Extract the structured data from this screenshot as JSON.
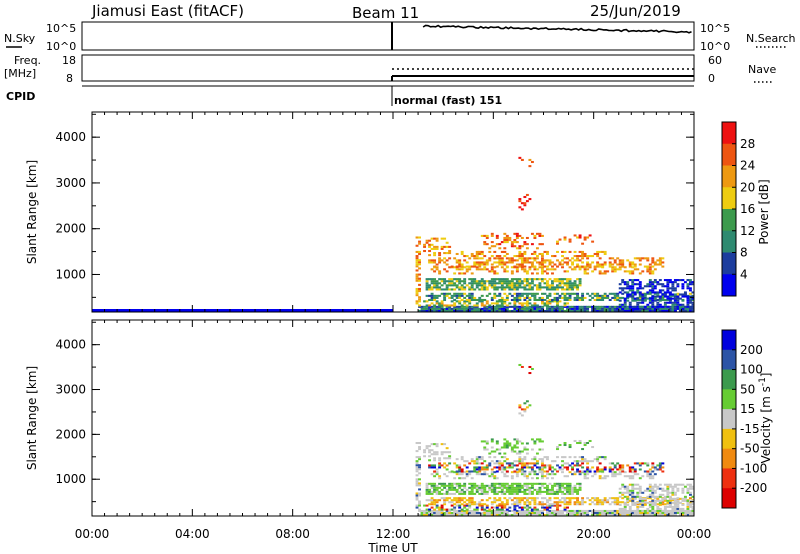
{
  "header": {
    "station": "Jiamusi East (fitACF)",
    "beam": "Beam 11",
    "date": "25/Jun/2019"
  },
  "strip_labels": {
    "nsky": "N.Sky",
    "nsky_ticks": [
      "10^5",
      "10^0"
    ],
    "nsearch": "N.Search",
    "freq_line1": "Freq.",
    "freq_line2": "[MHz]",
    "freq_ticks": [
      "18",
      "8"
    ],
    "nave": "Nave",
    "nave_ticks": [
      "60",
      "0"
    ],
    "cpid": "CPID",
    "mode_label": "normal (fast) 151"
  },
  "chart_data": [
    {
      "type": "heatmap",
      "name": "power-panel",
      "ylabel": "Slant Range [km]",
      "xlabel": "",
      "y_ticks": [
        1000,
        2000,
        3000,
        4000
      ],
      "ylim": [
        180,
        4550
      ],
      "x_tick_labels": [
        "00:00",
        "04:00",
        "08:00",
        "12:00",
        "16:00",
        "20:00",
        "00:00"
      ],
      "xlim_hours": [
        0,
        24
      ],
      "colorbar": {
        "label": "Power [dB]",
        "ticks": [
          "28",
          "24",
          "20",
          "16",
          "12",
          "8",
          "4"
        ],
        "colors": [
          "#ee1111",
          "#ee5511",
          "#ee9911",
          "#eecc11",
          "#3c9a4c",
          "#2e8a70",
          "#1c3d9e",
          "#0000ee"
        ]
      },
      "data_start_hour": 12.0
    },
    {
      "type": "heatmap",
      "name": "velocity-panel",
      "ylabel": "Slant Range [km]",
      "xlabel": "Time UT",
      "y_ticks": [
        1000,
        2000,
        3000,
        4000
      ],
      "ylim": [
        180,
        4550
      ],
      "x_tick_labels": [
        "00:00",
        "04:00",
        "08:00",
        "12:00",
        "16:00",
        "20:00",
        "00:00"
      ],
      "xlim_hours": [
        0,
        24
      ],
      "colorbar": {
        "label": "Velocity [m s-1]",
        "ticks": [
          "200",
          "100",
          "50",
          "15",
          "-15",
          "-50",
          "-100",
          "-200"
        ],
        "colors": [
          "#0000dd",
          "#2c54a6",
          "#3b9a4d",
          "#66cc33",
          "#c8c8c8",
          "#f0c010",
          "#f08a10",
          "#ee3010",
          "#dd0000"
        ]
      },
      "data_start_hour": 12.0
    }
  ]
}
